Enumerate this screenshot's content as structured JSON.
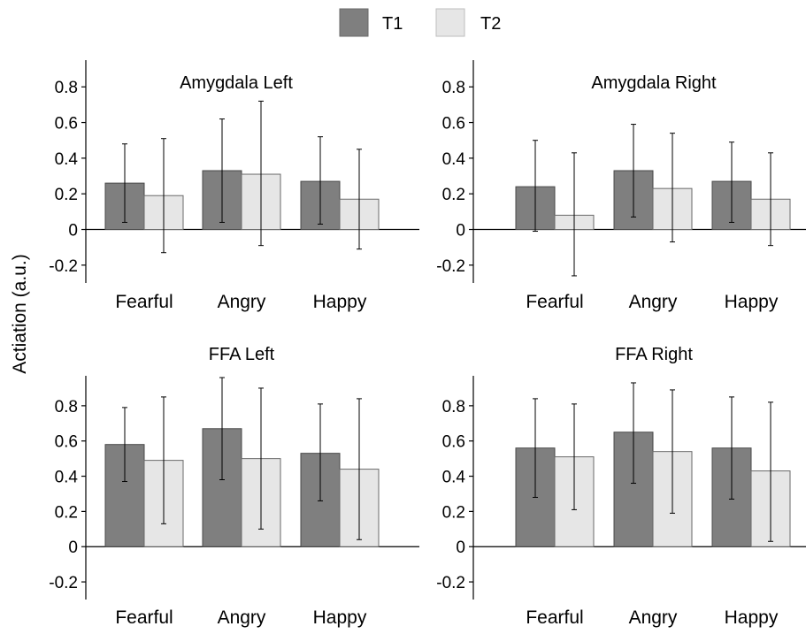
{
  "legend": [
    {
      "name": "T1",
      "color": "#7f7f7f"
    },
    {
      "name": "T2",
      "color": "#e6e6e6"
    }
  ],
  "shared_ylabel": "Actiation (a.u.)",
  "chart_data": [
    {
      "type": "bar",
      "title": "Amygdala Left",
      "categories": [
        "Fearful",
        "Angry",
        "Happy"
      ],
      "ylim": [
        -0.3,
        0.95
      ],
      "yticks": [
        -0.2,
        0,
        0.2,
        0.4,
        0.6,
        0.8
      ],
      "ytick_labels": [
        "-0.2",
        "0",
        "0.2",
        "0.4",
        "0.6",
        "0.8"
      ],
      "series": [
        {
          "name": "T1",
          "values": [
            0.26,
            0.33,
            0.27
          ],
          "err_low": [
            0.04,
            0.04,
            0.03
          ],
          "err_high": [
            0.48,
            0.62,
            0.52
          ]
        },
        {
          "name": "T2",
          "values": [
            0.19,
            0.31,
            0.17
          ],
          "err_low": [
            -0.13,
            -0.09,
            -0.11
          ],
          "err_high": [
            0.51,
            0.72,
            0.45
          ]
        }
      ]
    },
    {
      "type": "bar",
      "title": "Amygdala Right",
      "categories": [
        "Fearful",
        "Angry",
        "Happy"
      ],
      "ylim": [
        -0.3,
        0.95
      ],
      "yticks": [
        -0.2,
        0,
        0.2,
        0.4,
        0.6,
        0.8
      ],
      "ytick_labels": [
        "-0.2",
        "0",
        "0.2",
        "0.4",
        "0.6",
        "0.8"
      ],
      "series": [
        {
          "name": "T1",
          "values": [
            0.24,
            0.33,
            0.27
          ],
          "err_low": [
            -0.01,
            0.07,
            0.04
          ],
          "err_high": [
            0.5,
            0.59,
            0.49
          ]
        },
        {
          "name": "T2",
          "values": [
            0.08,
            0.23,
            0.17
          ],
          "err_low": [
            -0.26,
            -0.07,
            -0.09
          ],
          "err_high": [
            0.43,
            0.54,
            0.43
          ]
        }
      ]
    },
    {
      "type": "bar",
      "title": "FFA Left",
      "categories": [
        "Fearful",
        "Angry",
        "Happy"
      ],
      "ylim": [
        -0.3,
        0.97
      ],
      "yticks": [
        -0.2,
        0,
        0.2,
        0.4,
        0.6,
        0.8
      ],
      "ytick_labels": [
        "-0.2",
        "0",
        "0.2",
        "0.4",
        "0.6",
        "0.8"
      ],
      "series": [
        {
          "name": "T1",
          "values": [
            0.58,
            0.67,
            0.53
          ],
          "err_low": [
            0.37,
            0.38,
            0.26
          ],
          "err_high": [
            0.79,
            0.96,
            0.81
          ]
        },
        {
          "name": "T2",
          "values": [
            0.49,
            0.5,
            0.44
          ],
          "err_low": [
            0.13,
            0.1,
            0.04
          ],
          "err_high": [
            0.85,
            0.9,
            0.84
          ]
        }
      ]
    },
    {
      "type": "bar",
      "title": "FFA Right",
      "categories": [
        "Fearful",
        "Angry",
        "Happy"
      ],
      "ylim": [
        -0.3,
        0.97
      ],
      "yticks": [
        -0.2,
        0,
        0.2,
        0.4,
        0.6,
        0.8
      ],
      "ytick_labels": [
        "-0.2",
        "0",
        "0.2",
        "0.4",
        "0.6",
        "0.8"
      ],
      "series": [
        {
          "name": "T1",
          "values": [
            0.56,
            0.65,
            0.56
          ],
          "err_low": [
            0.28,
            0.36,
            0.27
          ],
          "err_high": [
            0.84,
            0.93,
            0.85
          ]
        },
        {
          "name": "T2",
          "values": [
            0.51,
            0.54,
            0.43
          ],
          "err_low": [
            0.21,
            0.19,
            0.03
          ],
          "err_high": [
            0.81,
            0.89,
            0.82
          ]
        }
      ]
    }
  ]
}
